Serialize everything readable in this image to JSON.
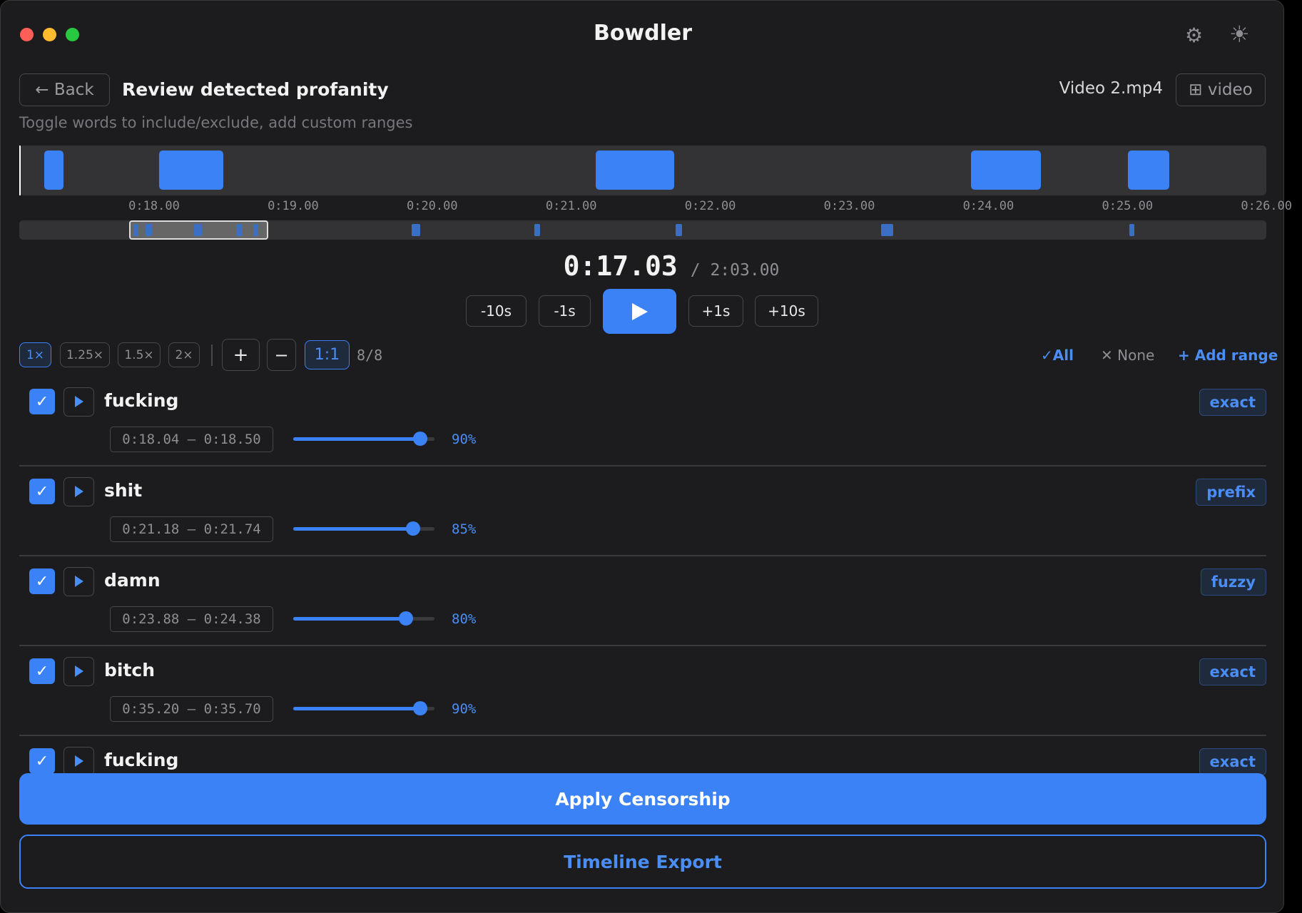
{
  "window": {
    "title": "Bowdler"
  },
  "header": {
    "back": "← Back",
    "title": "Review detected profanity",
    "file": "Video 2.mp4",
    "view_toggle": "⊞ video",
    "subtitle": "Toggle words to include/exclude, add custom ranges"
  },
  "timeline": {
    "ticks": [
      "0:18.00",
      "0:19.00",
      "0:20.00",
      "0:21.00",
      "0:22.00",
      "0:23.00",
      "0:24.00",
      "0:25.00",
      "0:26.00"
    ]
  },
  "transport": {
    "current": "0:17.03",
    "total": "/ 2:03.00",
    "buttons": [
      "-10s",
      "-1s",
      "+1s",
      "+10s"
    ]
  },
  "toolbar": {
    "speeds": [
      "1×",
      "1.25×",
      "1.5×",
      "2×"
    ],
    "zoom_in": "+",
    "zoom_out": "−",
    "zoom_reset": "1:1",
    "count": "8/8",
    "select_all": "✓All",
    "select_none": "✕ None",
    "add_range": "+ Add range"
  },
  "words": [
    {
      "word": "fucking",
      "range": "0:18.04 – 0:18.50",
      "confidence": "90%",
      "match": "exact"
    },
    {
      "word": "shit",
      "range": "0:21.18 – 0:21.74",
      "confidence": "85%",
      "match": "prefix"
    },
    {
      "word": "damn",
      "range": "0:23.88 – 0:24.38",
      "confidence": "80%",
      "match": "fuzzy"
    },
    {
      "word": "bitch",
      "range": "0:35.20 – 0:35.70",
      "confidence": "90%",
      "match": "exact"
    },
    {
      "word": "fucking",
      "match": "exact"
    }
  ],
  "actions": {
    "apply": "Apply Censorship",
    "export": "Timeline Export"
  }
}
